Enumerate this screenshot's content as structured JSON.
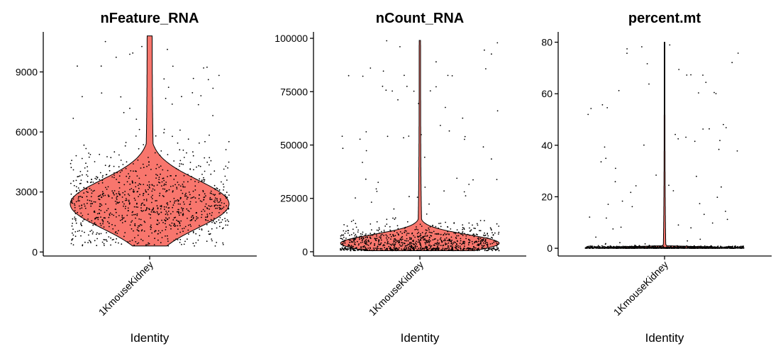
{
  "colors": {
    "violin_fill": "#F8766D",
    "outline": "#000000",
    "point": "#000000"
  },
  "chart_data": [
    {
      "type": "violin",
      "title": "nFeature_RNA",
      "xlabel": "Identity",
      "ylabel": "",
      "categories": [
        "1KmouseKidney"
      ],
      "ylim": [
        -200,
        11000
      ],
      "yticks": [
        0,
        3000,
        6000,
        9000
      ],
      "ytick_labels": [
        "0",
        "3000",
        "6000",
        "9000"
      ],
      "distribution": {
        "min": 300,
        "max": 10800,
        "mode": 2400,
        "spread": 1200,
        "tail_width_at_top": 0.03
      },
      "n_points": 1000,
      "legend": "none",
      "grid": false
    },
    {
      "type": "violin",
      "title": "nCount_RNA",
      "xlabel": "Identity",
      "ylabel": "",
      "categories": [
        "1KmouseKidney"
      ],
      "ylim": [
        -2000,
        103000
      ],
      "yticks": [
        0,
        25000,
        50000,
        75000,
        100000
      ],
      "ytick_labels": [
        "0",
        "25000",
        "50000",
        "75000",
        "100000"
      ],
      "distribution": {
        "min": 500,
        "max": 99000,
        "mode": 4000,
        "spread": 4000,
        "tail_width_at_top": 0.008
      },
      "n_points": 1000,
      "legend": "none",
      "grid": false
    },
    {
      "type": "violin",
      "title": "percent.mt",
      "xlabel": "Identity",
      "ylabel": "",
      "categories": [
        "1KmouseKidney"
      ],
      "ylim": [
        -3,
        84
      ],
      "yticks": [
        0,
        20,
        40,
        60,
        80
      ],
      "ytick_labels": [
        "0",
        "20",
        "40",
        "60",
        "80"
      ],
      "distribution": {
        "min": 0,
        "max": 80,
        "mode": 0.2,
        "spread": 0.3,
        "tail_width_at_top": 0.004
      },
      "n_points": 1000,
      "legend": "none",
      "grid": false
    }
  ]
}
